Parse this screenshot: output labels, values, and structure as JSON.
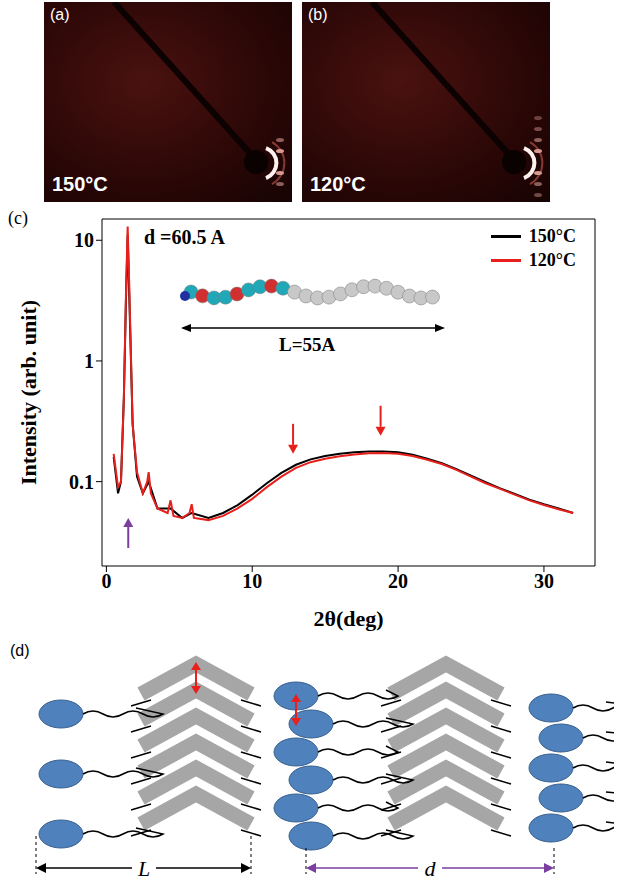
{
  "panels": [
    {
      "letter": "(a)",
      "label": "150°C"
    },
    {
      "letter": "(b)",
      "label": "120°C"
    }
  ],
  "chart_data": {
    "letter": "(c)",
    "type": "line",
    "xlabel": "2θ(deg)",
    "ylabel": "Intensity (arb. unit)",
    "log": "y",
    "xlim": [
      -0.3,
      33.5
    ],
    "xticks": [
      0,
      10,
      20,
      30
    ],
    "ylim": [
      0.02,
      15
    ],
    "yticks": [
      0.1,
      1,
      10
    ],
    "legend": "upper right",
    "annotations": [
      "d =60.5 A",
      "L=55A"
    ],
    "arrows": [
      {
        "x": 1.5,
        "y": 0.05,
        "marker": "arrow_up",
        "color": "#7b3fa0"
      },
      {
        "x": 12.8,
        "y": 0.17,
        "marker": "arrow_down",
        "color": "#e8201c"
      },
      {
        "x": 18.8,
        "y": 0.24,
        "marker": "arrow_down",
        "color": "#e8201c"
      }
    ],
    "series": [
      {
        "name": "150°C",
        "color": "#000000",
        "x": [
          0.5,
          0.8,
          1.0,
          1.2,
          1.35,
          1.46,
          1.6,
          1.8,
          2.1,
          2.5,
          2.9,
          3.5,
          4.4,
          5.2,
          5.85,
          7,
          8,
          9,
          10,
          11,
          12,
          13,
          14,
          15,
          16,
          17,
          18,
          19,
          20,
          21,
          22,
          23,
          24,
          25,
          26,
          27,
          28,
          29,
          30,
          31,
          32
        ],
        "values": [
          0.16,
          0.08,
          0.1,
          0.5,
          3.5,
          11,
          2.5,
          0.3,
          0.11,
          0.08,
          0.1,
          0.06,
          0.06,
          0.05,
          0.055,
          0.05,
          0.055,
          0.064,
          0.078,
          0.097,
          0.118,
          0.138,
          0.153,
          0.163,
          0.17,
          0.175,
          0.178,
          0.178,
          0.175,
          0.167,
          0.155,
          0.142,
          0.127,
          0.112,
          0.099,
          0.088,
          0.079,
          0.071,
          0.065,
          0.06,
          0.055
        ]
      },
      {
        "name": "120°C",
        "color": "#e8201c",
        "x": [
          0.5,
          0.8,
          1.0,
          1.2,
          1.35,
          1.46,
          1.6,
          1.8,
          2.1,
          2.5,
          2.8,
          2.9,
          3.05,
          3.5,
          4.2,
          4.4,
          4.6,
          5.2,
          5.7,
          5.85,
          6.0,
          7,
          8,
          9,
          10,
          11,
          12,
          13,
          14,
          15,
          16,
          17,
          18,
          19,
          20,
          21,
          22,
          23,
          24,
          25,
          26,
          27,
          28,
          29,
          30,
          31,
          32
        ],
        "values": [
          0.17,
          0.09,
          0.1,
          0.5,
          4,
          13,
          3,
          0.3,
          0.12,
          0.08,
          0.1,
          0.12,
          0.08,
          0.06,
          0.055,
          0.07,
          0.052,
          0.05,
          0.055,
          0.065,
          0.05,
          0.048,
          0.052,
          0.06,
          0.072,
          0.09,
          0.11,
          0.13,
          0.145,
          0.155,
          0.162,
          0.168,
          0.172,
          0.173,
          0.17,
          0.163,
          0.152,
          0.14,
          0.125,
          0.11,
          0.097,
          0.087,
          0.078,
          0.07,
          0.064,
          0.059,
          0.055
        ]
      }
    ]
  },
  "diagram": {
    "letter": "(d)",
    "length_label": "L",
    "spacing_label": "d"
  }
}
